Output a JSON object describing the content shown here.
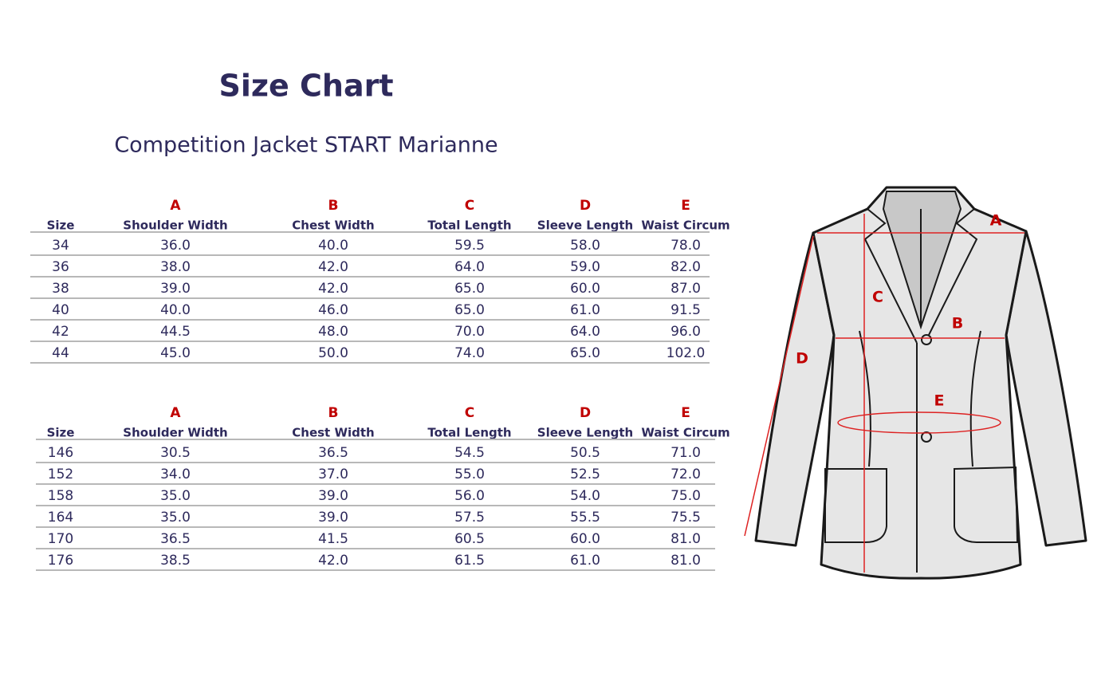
{
  "title": "Size Chart",
  "subtitle": "Competition Jacket START Marianne",
  "tables": [
    {
      "letters": [
        "A",
        "B",
        "C",
        "D",
        "E"
      ],
      "headers": [
        "Size",
        "Shoulder Width",
        "Chest Width",
        "Total Length",
        "Sleeve Length",
        "Waist Circum"
      ],
      "rows": [
        [
          "34",
          "36.0",
          "40.0",
          "59.5",
          "58.0",
          "78.0"
        ],
        [
          "36",
          "38.0",
          "42.0",
          "64.0",
          "59.0",
          "82.0"
        ],
        [
          "38",
          "39.0",
          "42.0",
          "65.0",
          "60.0",
          "87.0"
        ],
        [
          "40",
          "40.0",
          "46.0",
          "65.0",
          "61.0",
          "91.5"
        ],
        [
          "42",
          "44.5",
          "48.0",
          "70.0",
          "64.0",
          "96.0"
        ],
        [
          "44",
          "45.0",
          "50.0",
          "74.0",
          "65.0",
          "102.0"
        ]
      ]
    },
    {
      "letters": [
        "A",
        "B",
        "C",
        "D",
        "E"
      ],
      "headers": [
        "Size",
        "Shoulder Width",
        "Chest Width",
        "Total Length",
        "Sleeve Length",
        "Waist Circum"
      ],
      "rows": [
        [
          "146",
          "30.5",
          "36.5",
          "54.5",
          "50.5",
          "71.0"
        ],
        [
          "152",
          "34.0",
          "37.0",
          "55.0",
          "52.5",
          "72.0"
        ],
        [
          "158",
          "35.0",
          "39.0",
          "56.0",
          "54.0",
          "75.0"
        ],
        [
          "164",
          "35.0",
          "39.0",
          "57.5",
          "55.5",
          "75.5"
        ],
        [
          "170",
          "36.5",
          "41.5",
          "60.5",
          "60.0",
          "81.0"
        ],
        [
          "176",
          "38.5",
          "42.0",
          "61.5",
          "61.0",
          "81.0"
        ]
      ]
    }
  ],
  "diagram": {
    "labels": [
      "A",
      "B",
      "C",
      "D",
      "E"
    ]
  }
}
